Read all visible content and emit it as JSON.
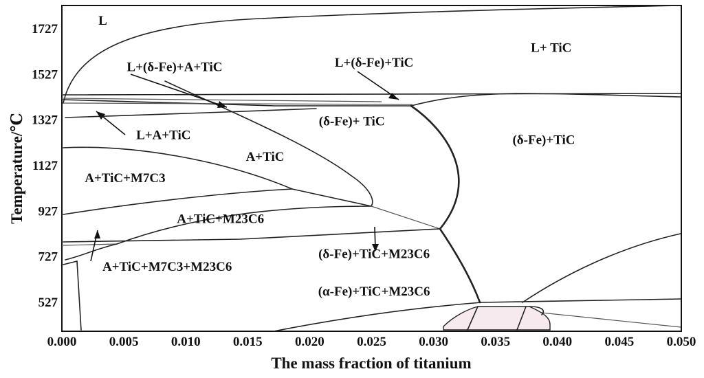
{
  "chart_data": {
    "type": "phase-diagram",
    "xlabel": "The mass fraction of  titanium",
    "ylabel": "Temperature/℃",
    "xlim": [
      0.0,
      0.05
    ],
    "ylim": [
      400,
      1830
    ],
    "x_ticks": [
      "0.000",
      "0.005",
      "0.010",
      "0.015",
      "0.020",
      "0.025",
      "0.030",
      "0.035",
      "0.040",
      "0.045",
      "0.050"
    ],
    "y_ticks": [
      "527",
      "727",
      "927",
      "1127",
      "1327",
      "1527",
      "1727"
    ],
    "regions": [
      {
        "id": "r-l",
        "label": "L",
        "x": 0.0033,
        "y": 1745
      },
      {
        "id": "r-l-tic",
        "label": "L+ TiC",
        "x": 0.0395,
        "y": 1627
      },
      {
        "id": "r-l-dfe-a-tic",
        "label": "L+(δ-Fe)+A+TiC",
        "x": 0.0091,
        "y": 1542
      },
      {
        "id": "r-l-dfe-tic",
        "label": "L+(δ-Fe)+TiC",
        "x": 0.0252,
        "y": 1561
      },
      {
        "id": "r-l-a-tic",
        "label": "L+A+TiC",
        "x": 0.0082,
        "y": 1243
      },
      {
        "id": "r-dfe-tic-1",
        "label": "(δ-Fe)+ TiC",
        "x": 0.0234,
        "y": 1304
      },
      {
        "id": "r-dfe-tic-2",
        "label": "(δ-Fe)+TiC",
        "x": 0.0389,
        "y": 1222
      },
      {
        "id": "r-a-tic",
        "label": "A+TiC",
        "x": 0.0164,
        "y": 1148
      },
      {
        "id": "r-a-tic-m7c3",
        "label": "A+TiC+M7C3",
        "x": 0.0051,
        "y": 1055
      },
      {
        "id": "r-a-tic-m23c6",
        "label": "A+TiC+M23C6",
        "x": 0.0128,
        "y": 875
      },
      {
        "id": "r-dfe-tic-m23c6",
        "label": "(δ-Fe)+TiC+M23C6",
        "x": 0.0252,
        "y": 721
      },
      {
        "id": "r-a-tic-m7c3-m23c6",
        "label": "A+TiC+M7C3+M23C6",
        "x": 0.0085,
        "y": 665
      },
      {
        "id": "r-afe-tic-m23c6",
        "label": "(α-Fe)+TiC+M23C6",
        "x": 0.0252,
        "y": 557
      }
    ]
  }
}
